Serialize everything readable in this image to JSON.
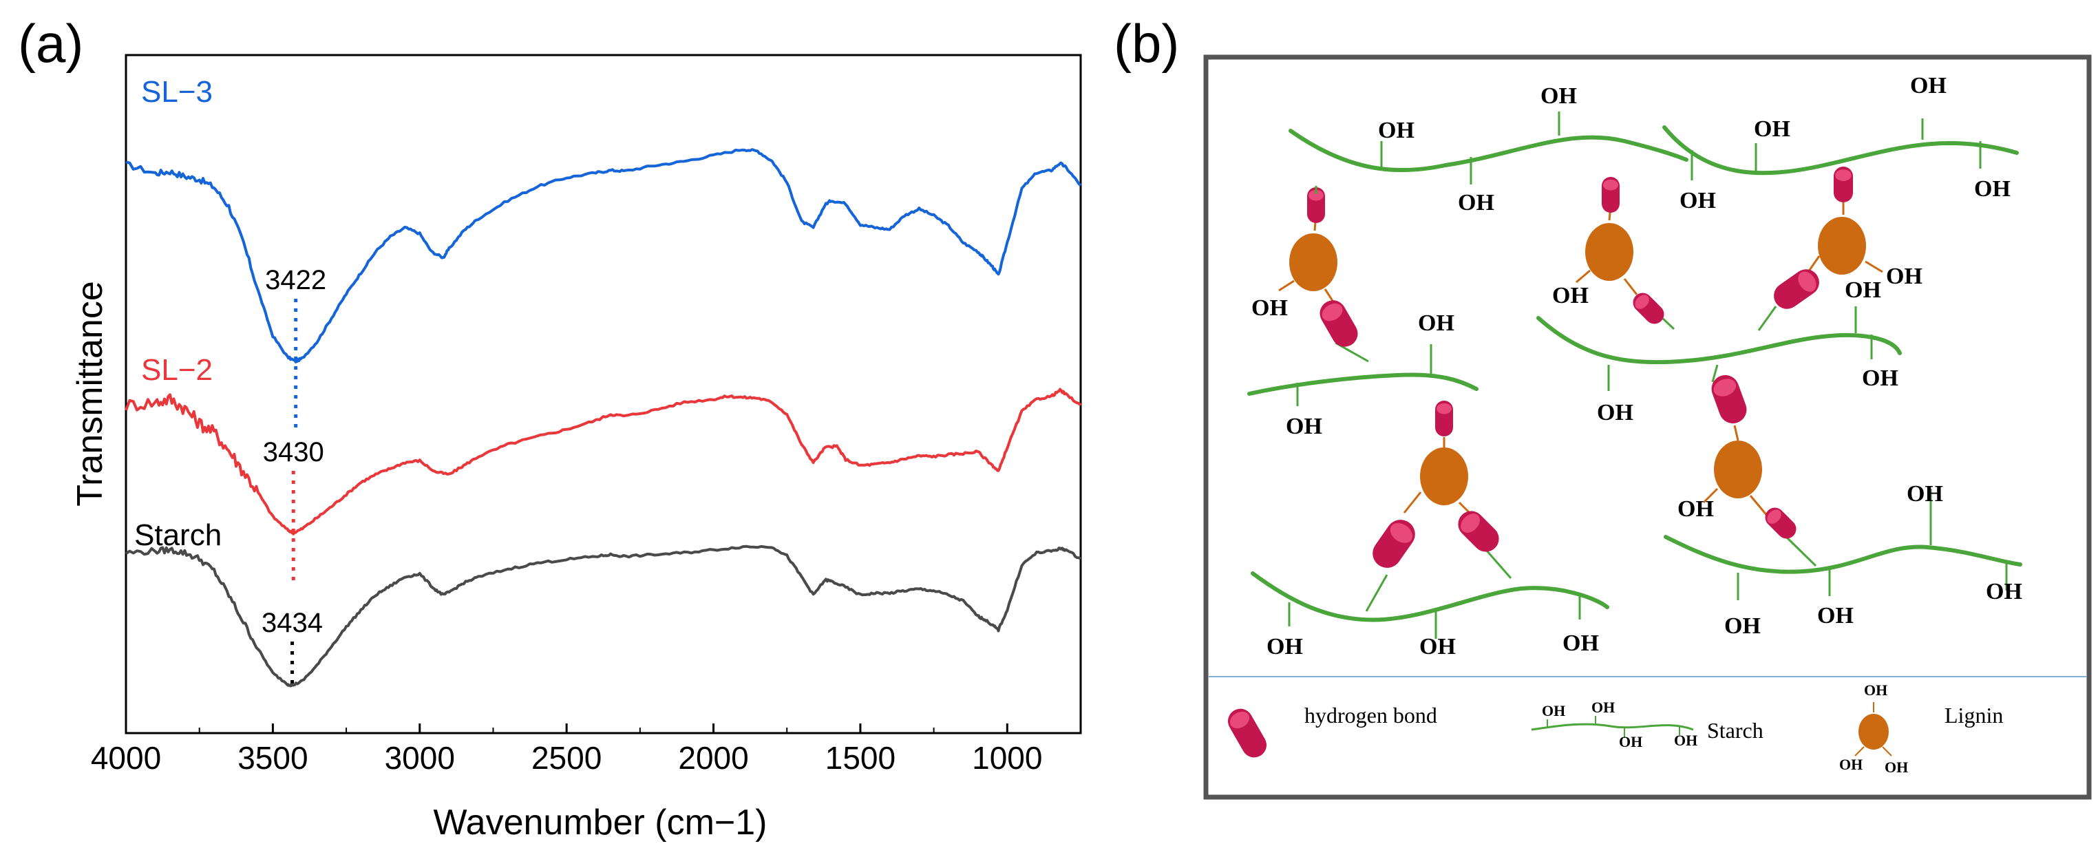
{
  "panel_a": {
    "label": "(a)",
    "chart_data": {
      "type": "line",
      "title": "",
      "xlabel": "Wavenumber (cm−1)",
      "ylabel": "Transmittance",
      "xlim": [
        4000,
        750
      ],
      "ylim": [
        0,
        100
      ],
      "xticks": [
        4000,
        3500,
        3000,
        2500,
        2000,
        1500,
        1000
      ],
      "xtick_labels": [
        "4000",
        "3500",
        "3000",
        "2500",
        "2000",
        "1500",
        "1000"
      ],
      "series": [
        {
          "name": "SL−3",
          "color": "#1565d8",
          "peak_label": "3422",
          "peak_x": 3422,
          "peak_y": 58.3,
          "x": [
            4000,
            3900,
            3850,
            3800,
            3750,
            3700,
            3650,
            3600,
            3550,
            3500,
            3450,
            3422,
            3400,
            3350,
            3300,
            3250,
            3200,
            3150,
            3100,
            3050,
            3000,
            2960,
            2920,
            2900,
            2850,
            2800,
            2700,
            2600,
            2500,
            2400,
            2350,
            2300,
            2200,
            2100,
            2000,
            1900,
            1850,
            1800,
            1750,
            1700,
            1660,
            1620,
            1600,
            1550,
            1500,
            1450,
            1400,
            1350,
            1300,
            1250,
            1200,
            1150,
            1100,
            1080,
            1050,
            1030,
            1000,
            950,
            900,
            850,
            820,
            800,
            750
          ],
          "values": [
            91,
            89.5,
            89.8,
            89,
            88.5,
            87.2,
            84,
            78,
            70,
            62.5,
            59,
            58.3,
            58.8,
            61.5,
            65.5,
            69.5,
            73,
            76.5,
            79,
            80.5,
            79.5,
            76.5,
            75.5,
            77,
            80,
            82,
            85,
            87.3,
            88.8,
            89.6,
            90,
            89.9,
            90.8,
            91.5,
            92.5,
            93.5,
            93.2,
            91.5,
            88,
            81.5,
            80.5,
            84.3,
            85,
            84.5,
            81,
            80.5,
            80.2,
            82.5,
            83.6,
            82.5,
            80.8,
            78,
            76.5,
            75.5,
            74,
            72.6,
            78,
            87,
            89.6,
            90,
            91.2,
            90.5,
            87.5
          ]
        },
        {
          "name": "SL−2",
          "color": "#e8383b",
          "peak_label": "3430",
          "peak_x": 3430,
          "peak_y": 29.8,
          "x": [
            4000,
            3900,
            3850,
            3800,
            3750,
            3700,
            3650,
            3600,
            3550,
            3500,
            3450,
            3430,
            3400,
            3350,
            3300,
            3250,
            3200,
            3150,
            3100,
            3050,
            3000,
            2950,
            2900,
            2850,
            2800,
            2700,
            2600,
            2500,
            2400,
            2350,
            2300,
            2200,
            2100,
            2000,
            1950,
            1900,
            1850,
            1800,
            1750,
            1700,
            1660,
            1620,
            1580,
            1550,
            1500,
            1450,
            1400,
            1350,
            1300,
            1250,
            1200,
            1150,
            1100,
            1050,
            1030,
            1000,
            950,
            900,
            850,
            820,
            800,
            750
          ],
          "values": [
            51,
            51.5,
            52,
            50.5,
            48,
            46.5,
            43.5,
            40,
            36.5,
            32.5,
            30.3,
            29.8,
            30.5,
            32.3,
            34.2,
            36.2,
            38.2,
            39.5,
            40.5,
            41.5,
            41.8,
            40,
            39.5,
            41,
            42.5,
            44.5,
            45.8,
            47,
            48.5,
            49.5,
            49.2,
            50.2,
            51.5,
            52,
            52.5,
            52.3,
            52.2,
            51.5,
            49.5,
            44.5,
            41.5,
            44,
            44.2,
            42,
            41,
            41.2,
            41.5,
            42.1,
            42.6,
            42.5,
            42.8,
            43,
            43.3,
            41,
            40,
            44,
            50,
            52,
            52.5,
            53.5,
            52.8,
            51
          ]
        },
        {
          "name": "Starch",
          "color": "#4a4a4a",
          "peak_label": "3434",
          "peak_x": 3434,
          "peak_y": 4.5,
          "x": [
            4000,
            3900,
            3850,
            3800,
            3750,
            3700,
            3650,
            3600,
            3550,
            3500,
            3450,
            3434,
            3400,
            3350,
            3300,
            3250,
            3200,
            3150,
            3100,
            3050,
            3000,
            2950,
            2920,
            2900,
            2850,
            2800,
            2700,
            2600,
            2500,
            2400,
            2350,
            2300,
            2200,
            2100,
            2000,
            1900,
            1800,
            1750,
            1700,
            1660,
            1620,
            1600,
            1550,
            1500,
            1450,
            1400,
            1350,
            1300,
            1250,
            1200,
            1150,
            1100,
            1080,
            1050,
            1030,
            1000,
            950,
            900,
            850,
            820,
            800,
            750
          ],
          "values": [
            26.5,
            26.8,
            27,
            26.5,
            25.5,
            23.5,
            19.5,
            15,
            10.5,
            6.5,
            4.7,
            4.5,
            5.2,
            7.8,
            11,
            14.2,
            17,
            19.5,
            21,
            22.5,
            23,
            20.5,
            19.5,
            20,
            21.5,
            22.5,
            23.8,
            24.8,
            25.4,
            25.9,
            26.2,
            25.9,
            26.2,
            26.5,
            27,
            27.5,
            27.5,
            26,
            22.5,
            19.5,
            22,
            21.8,
            20.8,
            19.5,
            19.8,
            19.8,
            20.2,
            20.5,
            20.2,
            19.5,
            18.5,
            16,
            15.5,
            14.5,
            13.7,
            17,
            24.5,
            26.5,
            26.8,
            27.2,
            27,
            25.5
          ]
        }
      ]
    }
  },
  "panel_b": {
    "label": "(b)",
    "oh_label": "OH",
    "legend": {
      "hydrogen_bond": "hydrogen bond",
      "starch": "Starch",
      "lignin": "Lignin"
    },
    "colors": {
      "starch": "#4aa53a",
      "lignin": "#cc6a12",
      "bond": "#c4164e"
    }
  }
}
